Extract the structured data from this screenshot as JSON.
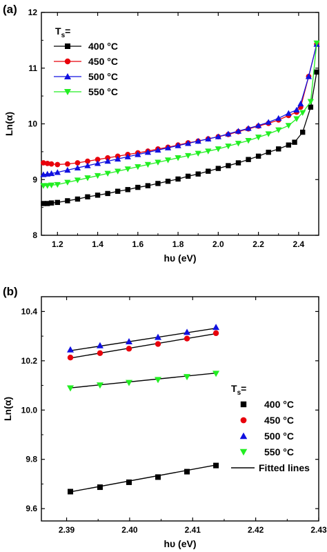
{
  "chart_data": [
    {
      "type": "line",
      "panel_label": "(a)",
      "xlabel": "hυ (eV)",
      "ylabel": "Ln(α)",
      "xlim": [
        1.12,
        2.5
      ],
      "ylim": [
        8,
        12
      ],
      "xticks": [
        1.2,
        1.4,
        1.6,
        1.8,
        2.0,
        2.2,
        2.4
      ],
      "xtick_labels": [
        "1.2",
        "1.4",
        "1.6",
        "1.8",
        "2.0",
        "2.2",
        "2.4"
      ],
      "yticks": [
        8,
        9,
        10,
        11,
        12
      ],
      "ytick_labels": [
        "8",
        "9",
        "10",
        "11",
        "12"
      ],
      "grid": false,
      "legend_title": "Ts=",
      "legend_placement": "top-left",
      "series": [
        {
          "name": "400 °C",
          "color": "#000000",
          "marker": "square",
          "x": [
            1.13,
            1.15,
            1.17,
            1.2,
            1.25,
            1.3,
            1.35,
            1.4,
            1.45,
            1.5,
            1.55,
            1.6,
            1.65,
            1.7,
            1.75,
            1.8,
            1.85,
            1.9,
            1.95,
            2.0,
            2.05,
            2.1,
            2.15,
            2.2,
            2.25,
            2.3,
            2.35,
            2.38,
            2.42,
            2.46,
            2.49
          ],
          "y": [
            8.57,
            8.57,
            8.58,
            8.59,
            8.62,
            8.65,
            8.69,
            8.72,
            8.75,
            8.79,
            8.82,
            8.86,
            8.89,
            8.93,
            8.97,
            9.01,
            9.06,
            9.1,
            9.15,
            9.2,
            9.25,
            9.3,
            9.36,
            9.42,
            9.49,
            9.55,
            9.62,
            9.67,
            9.85,
            10.3,
            10.93
          ]
        },
        {
          "name": "450 °C",
          "color": "#e8000b",
          "marker": "circle",
          "x": [
            1.13,
            1.15,
            1.17,
            1.2,
            1.25,
            1.3,
            1.35,
            1.4,
            1.45,
            1.5,
            1.55,
            1.6,
            1.65,
            1.7,
            1.75,
            1.8,
            1.85,
            1.9,
            1.95,
            2.0,
            2.05,
            2.1,
            2.15,
            2.2,
            2.25,
            2.3,
            2.35,
            2.39,
            2.41,
            2.45,
            2.49
          ],
          "y": [
            9.3,
            9.29,
            9.28,
            9.27,
            9.28,
            9.3,
            9.33,
            9.36,
            9.39,
            9.42,
            9.45,
            9.48,
            9.51,
            9.55,
            9.58,
            9.62,
            9.66,
            9.69,
            9.73,
            9.77,
            9.81,
            9.86,
            9.91,
            9.96,
            10.01,
            10.07,
            10.15,
            10.21,
            10.3,
            10.85,
            11.43
          ]
        },
        {
          "name": "500 °C",
          "color": "#1010e0",
          "marker": "triangle-up",
          "x": [
            1.13,
            1.15,
            1.17,
            1.2,
            1.25,
            1.3,
            1.35,
            1.4,
            1.45,
            1.5,
            1.55,
            1.6,
            1.65,
            1.7,
            1.75,
            1.8,
            1.85,
            1.9,
            1.95,
            2.0,
            2.05,
            2.1,
            2.15,
            2.2,
            2.25,
            2.3,
            2.35,
            2.39,
            2.41,
            2.45,
            2.49
          ],
          "y": [
            9.09,
            9.1,
            9.11,
            9.13,
            9.17,
            9.21,
            9.25,
            9.29,
            9.33,
            9.37,
            9.41,
            9.45,
            9.49,
            9.53,
            9.57,
            9.61,
            9.65,
            9.69,
            9.73,
            9.77,
            9.82,
            9.87,
            9.92,
            9.97,
            10.03,
            10.1,
            10.19,
            10.25,
            10.36,
            10.85,
            11.43
          ]
        },
        {
          "name": "550 °C",
          "color": "#22ee22",
          "marker": "triangle-down",
          "x": [
            1.13,
            1.15,
            1.17,
            1.2,
            1.25,
            1.3,
            1.35,
            1.4,
            1.45,
            1.5,
            1.55,
            1.6,
            1.65,
            1.7,
            1.75,
            1.8,
            1.85,
            1.9,
            1.95,
            2.0,
            2.05,
            2.1,
            2.15,
            2.2,
            2.25,
            2.3,
            2.35,
            2.39,
            2.42,
            2.46,
            2.49
          ],
          "y": [
            8.89,
            8.89,
            8.9,
            8.91,
            8.95,
            8.99,
            9.03,
            9.07,
            9.11,
            9.15,
            9.19,
            9.23,
            9.27,
            9.31,
            9.35,
            9.39,
            9.43,
            9.47,
            9.51,
            9.55,
            9.6,
            9.65,
            9.7,
            9.76,
            9.82,
            9.89,
            9.97,
            10.09,
            10.2,
            10.4,
            11.45
          ]
        }
      ]
    },
    {
      "type": "scatter",
      "panel_label": "(b)",
      "xlabel": "hυ (eV)",
      "ylabel": "Ln(α)",
      "xlim": [
        2.386,
        2.43
      ],
      "ylim": [
        9.55,
        10.46
      ],
      "xticks": [
        2.39,
        2.4,
        2.41,
        2.42,
        2.43
      ],
      "xtick_labels": [
        "2.39",
        "2.40",
        "2.41",
        "2.42",
        "2.43"
      ],
      "yticks": [
        9.6,
        9.8,
        10.0,
        10.2,
        10.4
      ],
      "ytick_labels": [
        "9.6",
        "9.8",
        "10.0",
        "10.2",
        "10.4"
      ],
      "grid": false,
      "legend_title": "Ts=",
      "legend_placement": "right",
      "fit_legend": "Fitted lines",
      "series": [
        {
          "name": "400 °C",
          "color": "#000000",
          "marker": "square",
          "x": [
            2.3906,
            2.3953,
            2.3999,
            2.4045,
            2.4091,
            2.4137
          ],
          "y": [
            9.669,
            9.687,
            9.707,
            9.728,
            9.75,
            9.775
          ],
          "fit": [
            [
              2.3906,
              9.668
            ],
            [
              2.4137,
              9.777
            ]
          ]
        },
        {
          "name": "450 °C",
          "color": "#e8000b",
          "marker": "circle",
          "x": [
            2.3906,
            2.3953,
            2.3999,
            2.4045,
            2.4091,
            2.4137
          ],
          "y": [
            10.213,
            10.231,
            10.249,
            10.268,
            10.29,
            10.312
          ],
          "fit": [
            [
              2.3906,
              10.211
            ],
            [
              2.4137,
              10.31
            ]
          ]
        },
        {
          "name": "500 °C",
          "color": "#1010e0",
          "marker": "triangle-up",
          "x": [
            2.3906,
            2.3953,
            2.3999,
            2.4045,
            2.4091,
            2.4137
          ],
          "y": [
            10.245,
            10.262,
            10.278,
            10.296,
            10.316,
            10.336
          ],
          "fit": [
            [
              2.3906,
              10.241
            ],
            [
              2.4137,
              10.332
            ]
          ]
        },
        {
          "name": "550 °C",
          "color": "#22ee22",
          "marker": "triangle-down",
          "x": [
            2.3906,
            2.3953,
            2.3999,
            2.4045,
            2.4091,
            2.4137
          ],
          "y": [
            10.089,
            10.101,
            10.111,
            10.123,
            10.135,
            10.148
          ],
          "fit": [
            [
              2.3906,
              10.09
            ],
            [
              2.4137,
              10.15
            ]
          ]
        }
      ]
    }
  ]
}
